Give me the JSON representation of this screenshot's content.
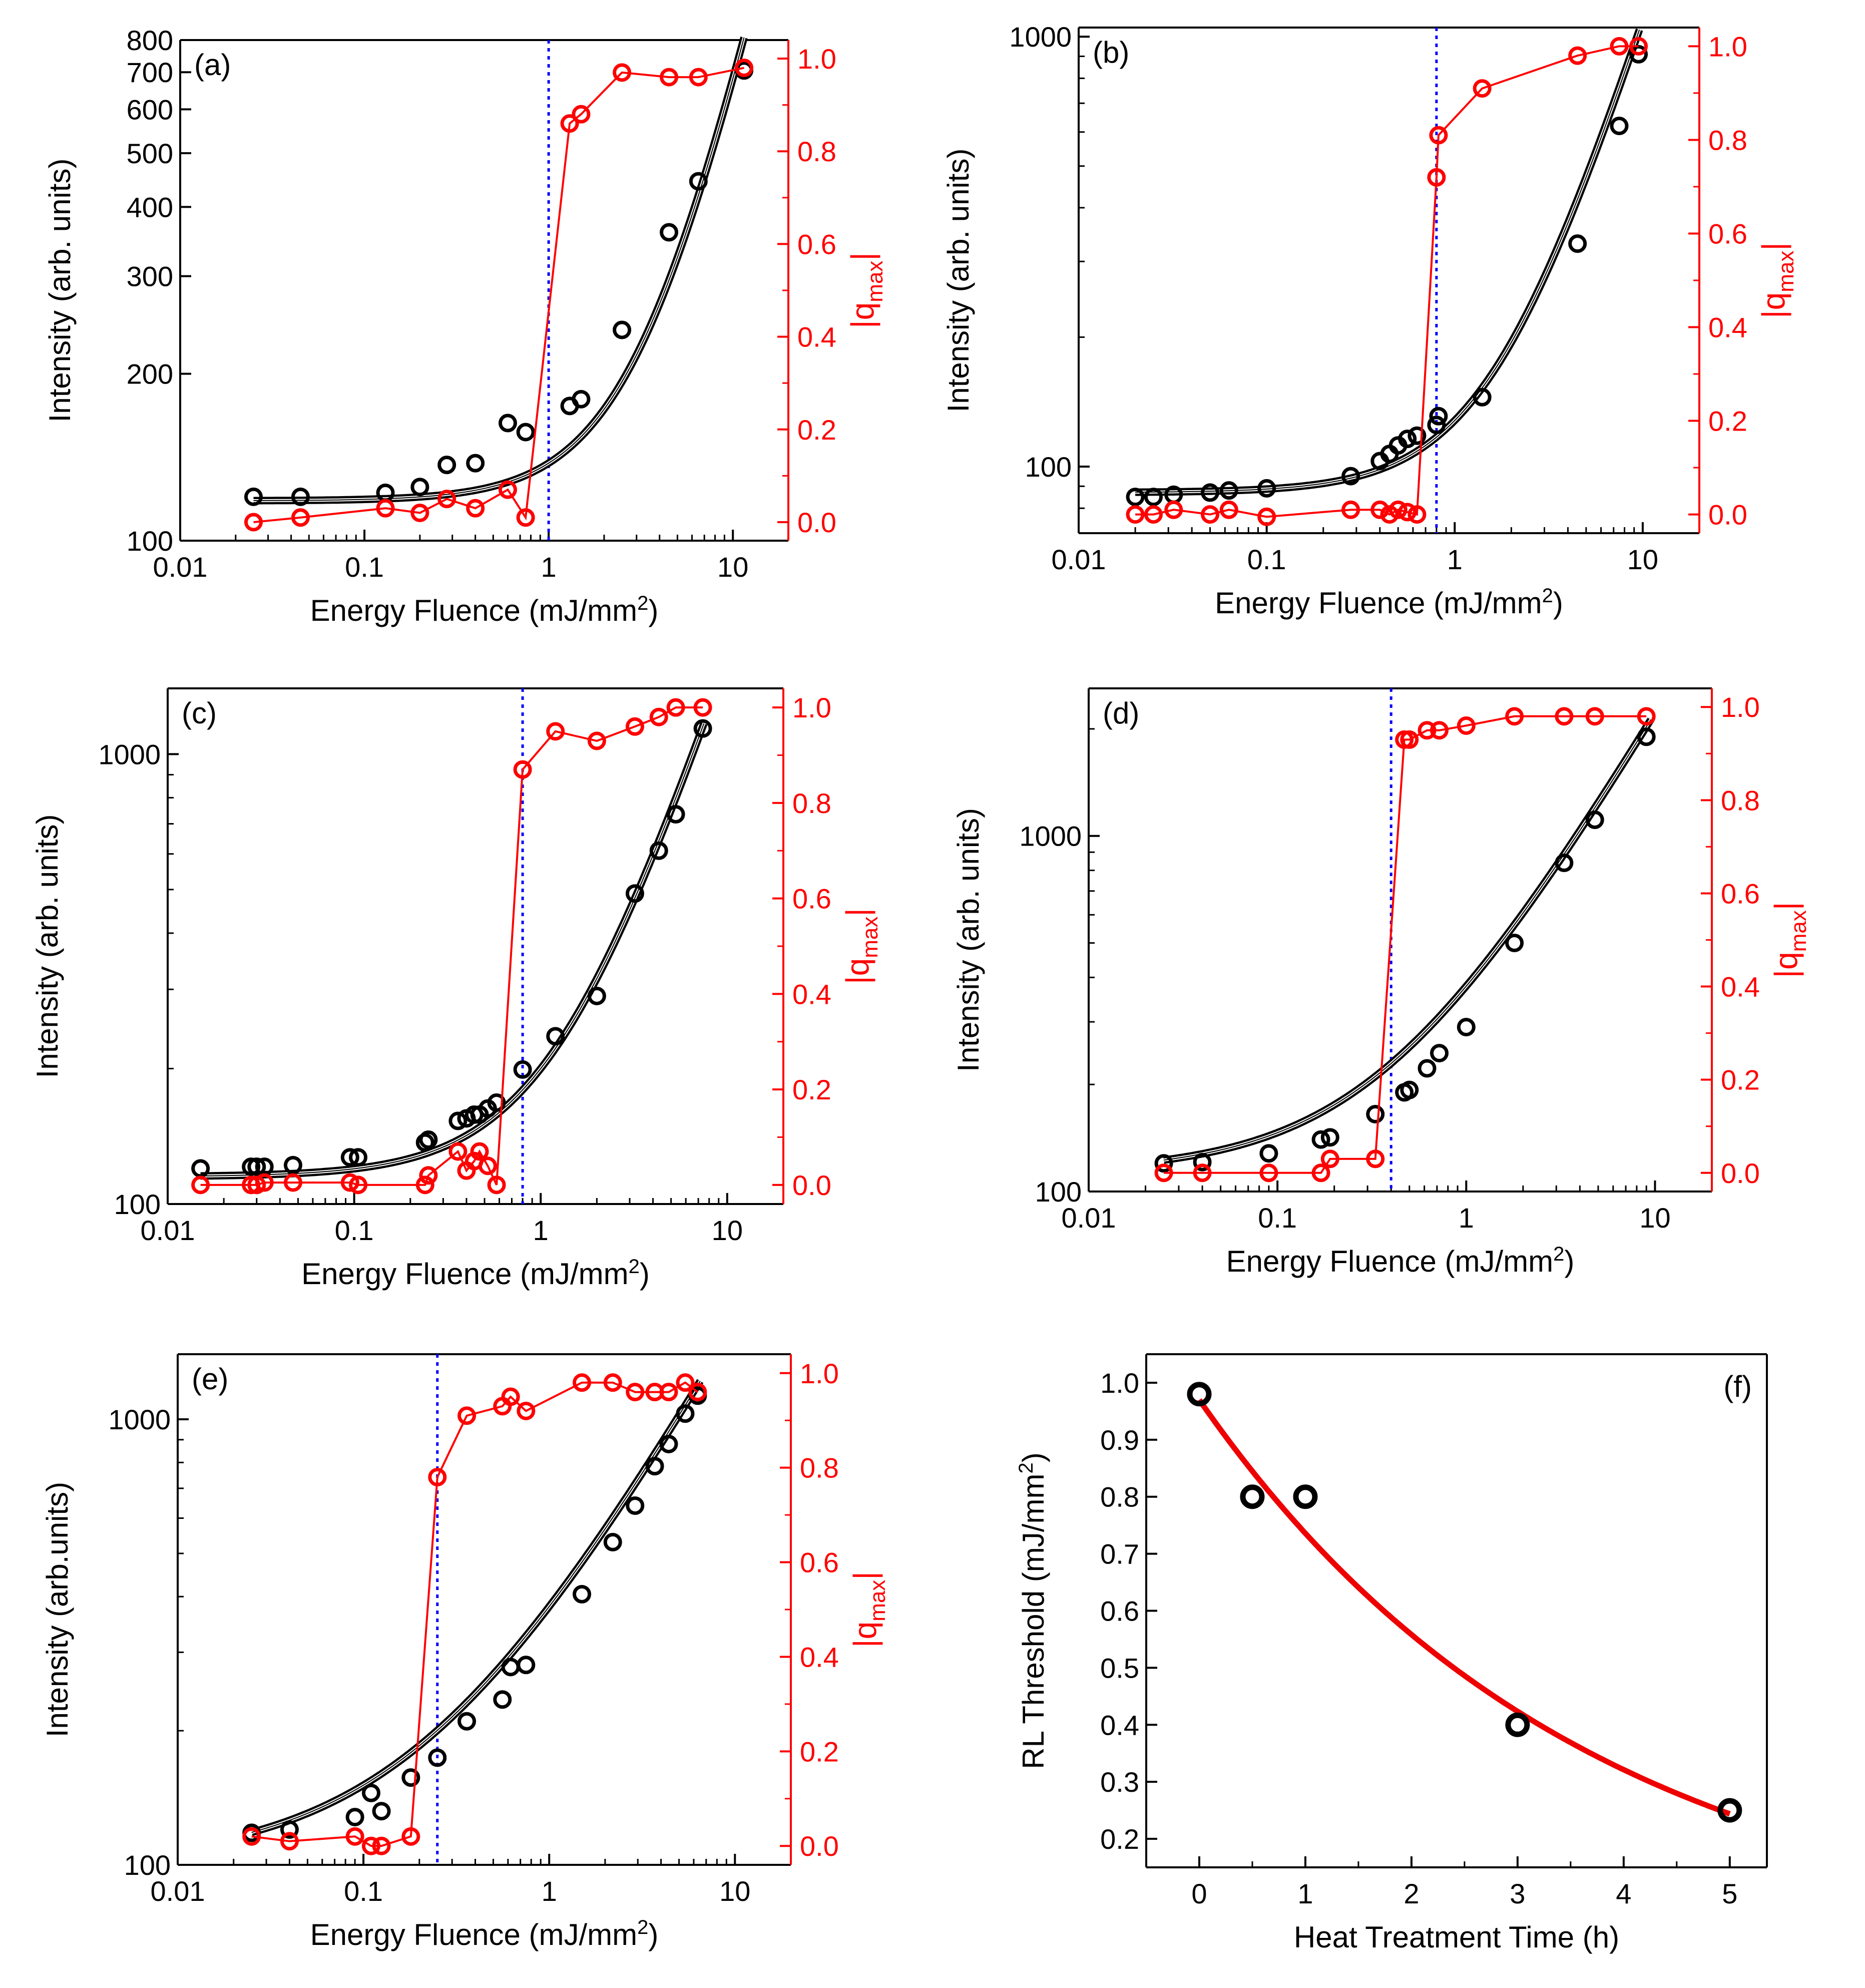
{
  "colors": {
    "left": "#000000",
    "right": "#ff0000",
    "threshold": "#0000ff",
    "fit_f": "#ee0000"
  },
  "chart_data": [
    {
      "id": "a",
      "type": "scatter",
      "panel_label": "(a)",
      "xlabel": "Energy Fluence (mJ/mm",
      "xlabel_sup": "2",
      "xlabel_end": ")",
      "ylabel": "Intensity (arb. units)",
      "y2label_main": "|q",
      "y2label_sub": "max",
      "y2label_end": "|",
      "x_scale": "log",
      "xlim": [
        0.01,
        20
      ],
      "y_scale": "log",
      "ylim": [
        100,
        800
      ],
      "y2lim": [
        -0.04,
        1.04
      ],
      "x_ticks": [
        0.01,
        0.1,
        1,
        10
      ],
      "x_tick_labels": [
        "0.01",
        "0.1",
        "1",
        "10"
      ],
      "y_ticks": [
        100,
        200,
        300,
        400,
        500,
        600,
        700,
        800
      ],
      "y_tick_labels": [
        "100",
        "200",
        "300",
        "400",
        "500",
        "600",
        "700",
        "800"
      ],
      "y2_ticks": [
        0,
        0.2,
        0.4,
        0.6,
        0.8,
        1.0
      ],
      "y2_tick_labels": [
        "0.0",
        "0.2",
        "0.4",
        "0.6",
        "0.8",
        "1.0"
      ],
      "threshold_x": 1.0,
      "series": [
        {
          "name": "Intensity",
          "axis": "left",
          "x": [
            0.025,
            0.045,
            0.13,
            0.2,
            0.28,
            0.4,
            0.6,
            0.75,
            1.3,
            1.5,
            2.5,
            4.5,
            6.5,
            11.5
          ],
          "y": [
            120,
            120,
            122,
            125,
            137,
            138,
            163,
            157,
            175,
            180,
            240,
            360,
            445,
            705
          ]
        },
        {
          "name": "Intensity fit",
          "axis": "left",
          "fit": {
            "model": "a+b*x^c",
            "a": 118,
            "b": 20,
            "c": 1.45
          },
          "x_range": [
            0.025,
            11.5
          ]
        },
        {
          "name": "|q_max|",
          "axis": "right",
          "x": [
            0.025,
            0.045,
            0.13,
            0.2,
            0.28,
            0.4,
            0.6,
            0.75,
            1.3,
            1.5,
            2.5,
            4.5,
            6.5,
            11.5
          ],
          "y": [
            0.0,
            0.01,
            0.03,
            0.02,
            0.05,
            0.03,
            0.07,
            0.01,
            0.86,
            0.88,
            0.97,
            0.96,
            0.96,
            0.98
          ]
        }
      ]
    },
    {
      "id": "b",
      "type": "scatter",
      "panel_label": "(b)",
      "xlabel": "Energy Fluence (mJ/mm",
      "xlabel_sup": "2",
      "xlabel_end": ")",
      "ylabel": "Intensity (arb. units)",
      "y2label_main": "|q",
      "y2label_sub": "max",
      "y2label_end": "|",
      "x_scale": "log",
      "xlim": [
        0.01,
        20
      ],
      "y_scale": "log",
      "ylim": [
        70,
        1050
      ],
      "y2lim": [
        -0.04,
        1.04
      ],
      "x_ticks": [
        0.01,
        0.1,
        1,
        10
      ],
      "x_tick_labels": [
        "0.01",
        "0.1",
        "1",
        "10"
      ],
      "y_ticks": [
        100,
        1000
      ],
      "y_tick_labels": [
        "100",
        "1000"
      ],
      "y2_ticks": [
        0,
        0.2,
        0.4,
        0.6,
        0.8,
        1.0
      ],
      "y2_tick_labels": [
        "0.0",
        "0.2",
        "0.4",
        "0.6",
        "0.8",
        "1.0"
      ],
      "threshold_x": 0.8,
      "series": [
        {
          "name": "Intensity",
          "axis": "left",
          "x": [
            0.02,
            0.025,
            0.032,
            0.05,
            0.063,
            0.1,
            0.28,
            0.4,
            0.45,
            0.5,
            0.56,
            0.63,
            0.8,
            0.82,
            1.4,
            4.5,
            7.5,
            9.5
          ],
          "y": [
            85,
            85,
            86,
            87,
            88,
            89,
            95,
            103,
            107,
            112,
            116,
            118,
            125,
            131,
            145,
            330,
            620,
            910
          ]
        },
        {
          "name": "Intensity fit",
          "axis": "left",
          "fit": {
            "model": "a+b*x^c",
            "a": 87,
            "b": 41,
            "c": 1.39
          },
          "x_range": [
            0.02,
            9.6
          ]
        },
        {
          "name": "|q_max|",
          "axis": "right",
          "x": [
            0.02,
            0.025,
            0.032,
            0.05,
            0.063,
            0.1,
            0.28,
            0.4,
            0.45,
            0.5,
            0.56,
            0.63,
            0.8,
            0.82,
            1.4,
            4.5,
            7.5,
            9.5
          ],
          "y": [
            0.0,
            0.0,
            0.01,
            0.0,
            0.01,
            -0.005,
            0.01,
            0.01,
            0.0,
            0.01,
            0.005,
            0.0,
            0.72,
            0.81,
            0.91,
            0.98,
            1.0,
            1.0
          ]
        }
      ]
    },
    {
      "id": "c",
      "type": "scatter",
      "panel_label": "(c)",
      "xlabel": "Energy Fluence (mJ/mm",
      "xlabel_sup": "2",
      "xlabel_end": ")",
      "ylabel": "Intensity (arb. units)",
      "y2label_main": "|q",
      "y2label_sub": "max",
      "y2label_end": "|",
      "x_scale": "log",
      "xlim": [
        0.01,
        20
      ],
      "y_scale": "log",
      "ylim": [
        100,
        1400
      ],
      "y2lim": [
        -0.04,
        1.04
      ],
      "x_ticks": [
        0.01,
        0.1,
        1,
        10
      ],
      "x_tick_labels": [
        "0.01",
        "0.1",
        "1",
        "10"
      ],
      "y_ticks": [
        100,
        1000
      ],
      "y_tick_labels": [
        "100",
        "1000"
      ],
      "y2_ticks": [
        0,
        0.2,
        0.4,
        0.6,
        0.8,
        1.0
      ],
      "y2_tick_labels": [
        "0.0",
        "0.2",
        "0.4",
        "0.6",
        "0.8",
        "1.0"
      ],
      "threshold_x": 0.8,
      "series": [
        {
          "name": "Intensity",
          "axis": "left",
          "x": [
            0.015,
            0.028,
            0.03,
            0.033,
            0.047,
            0.095,
            0.105,
            0.24,
            0.25,
            0.36,
            0.4,
            0.44,
            0.47,
            0.52,
            0.58,
            0.8,
            1.2,
            2.0,
            3.2,
            4.3,
            5.3,
            7.4
          ],
          "y": [
            120,
            121,
            121,
            121,
            122,
            127,
            127,
            137,
            139,
            153,
            155,
            158,
            158,
            163,
            168,
            199,
            236,
            290,
            490,
            610,
            735,
            1140
          ]
        },
        {
          "name": "Intensity fit",
          "axis": "left",
          "fit": {
            "model": "a+b*x^c",
            "a": 115,
            "b": 85,
            "c": 1.25
          },
          "x_range": [
            0.015,
            7.5
          ]
        },
        {
          "name": "|q_max|",
          "axis": "right",
          "x": [
            0.015,
            0.028,
            0.03,
            0.033,
            0.047,
            0.095,
            0.105,
            0.24,
            0.25,
            0.36,
            0.4,
            0.44,
            0.47,
            0.52,
            0.58,
            0.8,
            1.2,
            2.0,
            3.2,
            4.3,
            5.3,
            7.4
          ],
          "y": [
            0.0,
            0.0,
            0.0,
            0.005,
            0.005,
            0.005,
            0.0,
            0.0,
            0.02,
            0.07,
            0.03,
            0.05,
            0.07,
            0.04,
            0.0,
            0.87,
            0.95,
            0.93,
            0.96,
            0.98,
            1.0,
            1.0
          ]
        }
      ]
    },
    {
      "id": "d",
      "type": "scatter",
      "panel_label": "(d)",
      "xlabel": "Energy Fluence (mJ/mm",
      "xlabel_sup": "2",
      "xlabel_end": ")",
      "ylabel": "Intensity (arb. units)",
      "y2label_main": "|q",
      "y2label_sub": "max",
      "y2label_end": "|",
      "x_scale": "log",
      "xlim": [
        0.01,
        20
      ],
      "y_scale": "log",
      "ylim": [
        100,
        2600
      ],
      "y2lim": [
        -0.04,
        1.04
      ],
      "x_ticks": [
        0.01,
        0.1,
        1,
        10
      ],
      "x_tick_labels": [
        "0.01",
        "0.1",
        "1",
        "10"
      ],
      "y_ticks": [
        100,
        1000
      ],
      "y_tick_labels": [
        "100",
        "1000"
      ],
      "y2_ticks": [
        0,
        0.2,
        0.4,
        0.6,
        0.8,
        1.0
      ],
      "y2_tick_labels": [
        "0.0",
        "0.2",
        "0.4",
        "0.6",
        "0.8",
        "1.0"
      ],
      "threshold_x": 0.4,
      "series": [
        {
          "name": "Intensity",
          "axis": "left",
          "x": [
            0.025,
            0.04,
            0.09,
            0.17,
            0.19,
            0.33,
            0.47,
            0.5,
            0.62,
            0.72,
            1.0,
            1.8,
            3.3,
            4.8,
            9.0
          ],
          "y": [
            120,
            121,
            128,
            140,
            142,
            165,
            190,
            193,
            222,
            245,
            290,
            500,
            840,
            1110,
            1900
          ]
        },
        {
          "name": "Intensity fit",
          "axis": "left",
          "fit": {
            "model": "a+b*x^c",
            "a": 113,
            "b": 265,
            "c": 0.9
          },
          "x_range": [
            0.025,
            9.5
          ]
        },
        {
          "name": "|q_max|",
          "axis": "right",
          "x": [
            0.025,
            0.04,
            0.09,
            0.17,
            0.19,
            0.33,
            0.47,
            0.5,
            0.62,
            0.72,
            1.0,
            1.8,
            3.3,
            4.8,
            9.0
          ],
          "y": [
            0.0,
            0.0,
            0.0,
            0.0,
            0.03,
            0.03,
            0.93,
            0.93,
            0.95,
            0.95,
            0.96,
            0.98,
            0.98,
            0.98,
            0.98
          ]
        }
      ]
    },
    {
      "id": "e",
      "type": "scatter",
      "panel_label": "(e)",
      "xlabel": "Energy Fluence (mJ/mm",
      "xlabel_sup": "2",
      "xlabel_end": ")",
      "ylabel": "Intensity (arb.units)",
      "y2label_main": "|q",
      "y2label_sub": "max",
      "y2label_end": "|",
      "x_scale": "log",
      "xlim": [
        0.01,
        20
      ],
      "y_scale": "log",
      "ylim": [
        100,
        1400
      ],
      "y2lim": [
        -0.04,
        1.04
      ],
      "x_ticks": [
        0.01,
        0.1,
        1,
        10
      ],
      "x_tick_labels": [
        "0.01",
        "0.1",
        "1",
        "10"
      ],
      "y_ticks": [
        100,
        1000
      ],
      "y_tick_labels": [
        "100",
        "1000"
      ],
      "y2_ticks": [
        0,
        0.2,
        0.4,
        0.6,
        0.8,
        1.0
      ],
      "y2_tick_labels": [
        "0.0",
        "0.2",
        "0.4",
        "0.6",
        "0.8",
        "1.0"
      ],
      "threshold_x": 0.25,
      "series": [
        {
          "name": "Intensity",
          "axis": "left",
          "x": [
            0.025,
            0.04,
            0.09,
            0.11,
            0.125,
            0.18,
            0.25,
            0.36,
            0.56,
            0.62,
            0.75,
            1.5,
            2.2,
            2.9,
            3.7,
            4.4,
            5.4,
            6.3
          ],
          "y": [
            118,
            120,
            128,
            145,
            132,
            157,
            174,
            210,
            235,
            278,
            281,
            405,
            530,
            640,
            785,
            880,
            1030,
            1130
          ]
        },
        {
          "name": "Intensity fit",
          "axis": "left",
          "fit": {
            "model": "a+b*x^c",
            "a": 100,
            "b": 280,
            "c": 0.74
          },
          "x_range": [
            0.025,
            6.5
          ]
        },
        {
          "name": "|q_max|",
          "axis": "right",
          "x": [
            0.025,
            0.04,
            0.09,
            0.11,
            0.125,
            0.18,
            0.25,
            0.36,
            0.56,
            0.62,
            0.75,
            1.5,
            2.2,
            2.9,
            3.7,
            4.4,
            5.4,
            6.3
          ],
          "y": [
            0.02,
            0.01,
            0.02,
            0.0,
            0.0,
            0.02,
            0.78,
            0.91,
            0.93,
            0.95,
            0.92,
            0.98,
            0.98,
            0.96,
            0.96,
            0.96,
            0.98,
            0.96
          ]
        }
      ]
    },
    {
      "id": "f",
      "type": "scatter",
      "panel_label": "(f)",
      "xlabel": "Heat Treatment Time (h)",
      "ylabel": "RL Threshold (mJ/mm",
      "ylabel_sup": "2",
      "ylabel_end": ")",
      "x_scale": "linear",
      "xlim": [
        -0.5,
        5.35
      ],
      "y_scale": "linear",
      "ylim": [
        0.15,
        1.05
      ],
      "x_ticks": [
        0,
        1,
        2,
        3,
        4,
        5
      ],
      "x_tick_labels": [
        "0",
        "1",
        "2",
        "3",
        "4",
        "5"
      ],
      "y_ticks": [
        0.2,
        0.3,
        0.4,
        0.5,
        0.6,
        0.7,
        0.8,
        0.9,
        1.0
      ],
      "y_tick_labels": [
        "0.2",
        "0.3",
        "0.4",
        "0.5",
        "0.6",
        "0.7",
        "0.8",
        "0.9",
        "1.0"
      ],
      "series": [
        {
          "name": "RL Threshold",
          "x": [
            0,
            0.5,
            1,
            3,
            5
          ],
          "y": [
            0.98,
            0.8,
            0.8,
            0.4,
            0.25
          ]
        },
        {
          "name": "Exponential fit",
          "fit": {
            "model": "a*exp(-x/t)",
            "a": 0.97,
            "t": 3.62
          },
          "x_range": [
            0,
            5
          ]
        }
      ]
    }
  ]
}
